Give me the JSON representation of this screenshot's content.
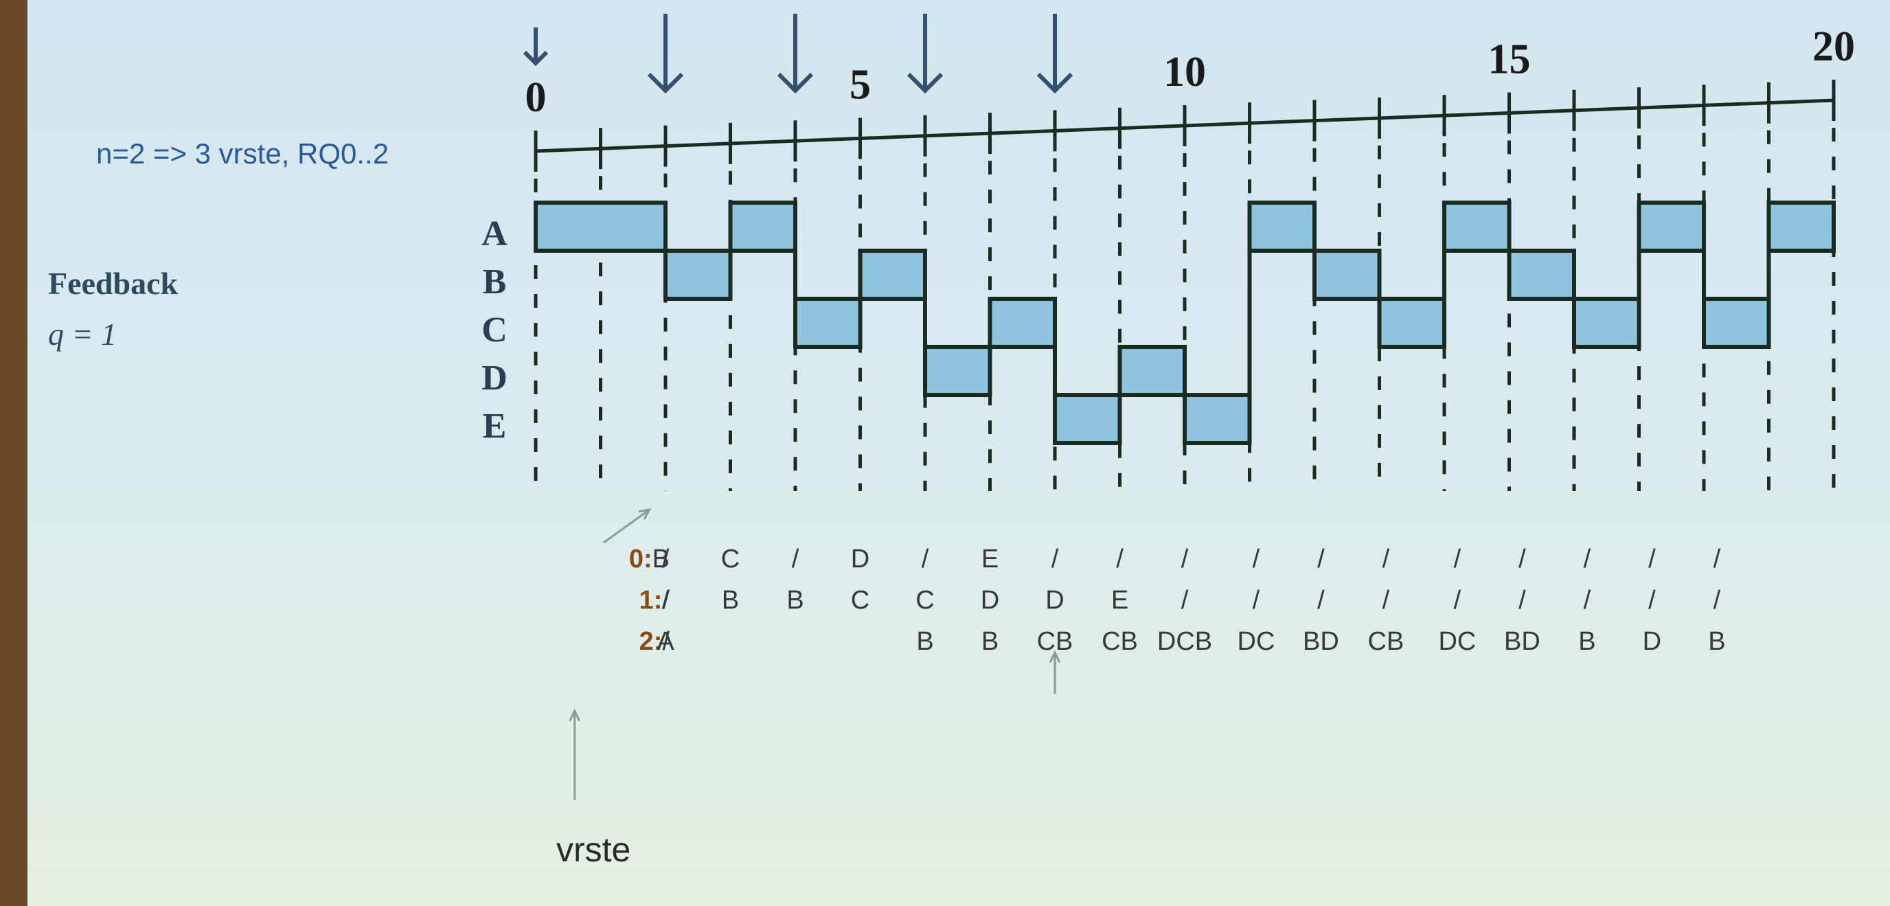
{
  "title": "n=2 => 3 vrste, RQ0..2",
  "algorithm": {
    "name": "Feedback",
    "param": "q = 1"
  },
  "processes": [
    "A",
    "B",
    "C",
    "D",
    "E"
  ],
  "time_axis": {
    "start": 0,
    "end": 20,
    "labeled_ticks": [
      {
        "t": 0,
        "label": "0"
      },
      {
        "t": 5,
        "label": "5"
      },
      {
        "t": 10,
        "label": "10"
      },
      {
        "t": 15,
        "label": "15"
      },
      {
        "t": 20,
        "label": "20"
      }
    ]
  },
  "arrivals": [
    {
      "t": 0,
      "process": "A"
    },
    {
      "t": 2,
      "process": "B"
    },
    {
      "t": 4,
      "process": "C"
    },
    {
      "t": 6,
      "process": "D"
    },
    {
      "t": 8,
      "process": "E"
    }
  ],
  "schedule": [
    {
      "process": "A",
      "start": 0,
      "end": 2
    },
    {
      "process": "B",
      "start": 2,
      "end": 3
    },
    {
      "process": "A",
      "start": 3,
      "end": 4
    },
    {
      "process": "C",
      "start": 4,
      "end": 5
    },
    {
      "process": "B",
      "start": 5,
      "end": 6
    },
    {
      "process": "D",
      "start": 6,
      "end": 7
    },
    {
      "process": "C",
      "start": 7,
      "end": 8
    },
    {
      "process": "E",
      "start": 8,
      "end": 9
    },
    {
      "process": "D",
      "start": 9,
      "end": 10
    },
    {
      "process": "E",
      "start": 10,
      "end": 11
    },
    {
      "process": "A",
      "start": 11,
      "end": 12
    },
    {
      "process": "B",
      "start": 12,
      "end": 13
    },
    {
      "process": "C",
      "start": 13,
      "end": 14
    },
    {
      "process": "A",
      "start": 14,
      "end": 15
    },
    {
      "process": "B",
      "start": 15,
      "end": 16
    },
    {
      "process": "C",
      "start": 16,
      "end": 17
    },
    {
      "process": "A",
      "start": 17,
      "end": 18
    },
    {
      "process": "C",
      "start": 18,
      "end": 19
    },
    {
      "process": "A",
      "start": 19,
      "end": 20
    }
  ],
  "queues": {
    "row_labels": [
      "0:",
      "1:",
      "2:"
    ],
    "columns": [
      {
        "t": 1,
        "q0": "B",
        "q1": "/",
        "q2": "/"
      },
      {
        "t": 2,
        "q0": "/",
        "q1": "/",
        "q2": "A"
      },
      {
        "t": 3,
        "q0": "C",
        "q1": "B",
        "q2": ""
      },
      {
        "t": 4,
        "q0": "/",
        "q1": "B",
        "q2": ""
      },
      {
        "t": 5,
        "q0": "D",
        "q1": "C",
        "q2": ""
      },
      {
        "t": 6,
        "q0": "/",
        "q1": "C",
        "q2": "B"
      },
      {
        "t": 7,
        "q0": "E",
        "q1": "D",
        "q2": "B"
      },
      {
        "t": 8,
        "q0": "/",
        "q1": "D",
        "q2": "CB"
      },
      {
        "t": 9,
        "q0": "/",
        "q1": "E",
        "q2": "CB"
      },
      {
        "t": 10,
        "q0": "/",
        "q1": "/",
        "q2": "DCB"
      },
      {
        "t": 11.1,
        "q0": "/",
        "q1": "/",
        "q2": "DC"
      },
      {
        "t": 12.1,
        "q0": "/",
        "q1": "/",
        "q2": "BD"
      },
      {
        "t": 13.1,
        "q0": "/",
        "q1": "/",
        "q2": "CB"
      },
      {
        "t": 14.2,
        "q0": "/",
        "q1": "/",
        "q2": "DC"
      },
      {
        "t": 15.2,
        "q0": "/",
        "q1": "/",
        "q2": "BD"
      },
      {
        "t": 16.2,
        "q0": "/",
        "q1": "/",
        "q2": "B"
      },
      {
        "t": 17.2,
        "q0": "/",
        "q1": "/",
        "q2": "D"
      },
      {
        "t": 18.2,
        "q0": "/",
        "q1": "/",
        "q2": "B"
      }
    ]
  },
  "annotation": {
    "label": "vrste"
  },
  "colors": {
    "bar_fill": "#8fc4df",
    "line": "#1c2b22",
    "arrow": "#34506e",
    "title_text": "#2a5a9a",
    "queue_label": "#8a4a12",
    "queue_text": "#383838",
    "thin_arrow": "#8a9a9a"
  }
}
